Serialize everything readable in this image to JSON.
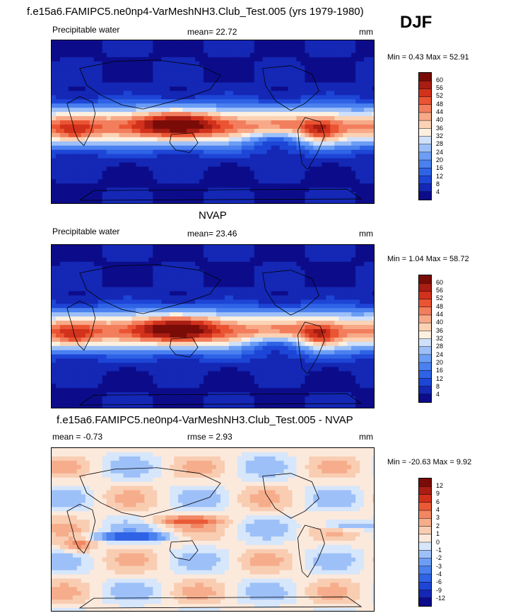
{
  "header": {
    "title": "f.e15a6.FAMIPC5.ne0np4-VarMeshNH3.Club_Test.005 (yrs 1979-1980)",
    "season": "DJF"
  },
  "panels": [
    {
      "left_label": "Precipitable water",
      "center_label": "mean=  22.72",
      "units": "mm",
      "minmax": "Min =   0.43 Max =  52.91",
      "levels": [
        "4",
        "8",
        "12",
        "16",
        "20",
        "24",
        "28",
        "32",
        "36",
        "40",
        "44",
        "48",
        "52",
        "56",
        "60"
      ],
      "colors": [
        "#0c0c8a",
        "#1427b5",
        "#1d45d6",
        "#2f63e6",
        "#4a80ef",
        "#6c9ef5",
        "#9dc0f8",
        "#cfe0fb",
        "#fdf0e0",
        "#fbd2b4",
        "#f7a988",
        "#f27e5d",
        "#ea5432",
        "#d2311c",
        "#a91d12",
        "#7a0c08"
      ],
      "map_style": "mean"
    },
    {
      "section_title": "NVAP",
      "left_label": "Precipitable water",
      "center_label": "mean=  23.46",
      "units": "mm",
      "minmax": "Min =   1.04 Max =  58.72",
      "levels": [
        "4",
        "8",
        "12",
        "16",
        "20",
        "24",
        "28",
        "32",
        "36",
        "40",
        "44",
        "48",
        "52",
        "56",
        "60"
      ],
      "colors": [
        "#0c0c8a",
        "#1427b5",
        "#1d45d6",
        "#2f63e6",
        "#4a80ef",
        "#6c9ef5",
        "#9dc0f8",
        "#cfe0fb",
        "#fdf0e0",
        "#fbd2b4",
        "#f7a988",
        "#f27e5d",
        "#ea5432",
        "#d2311c",
        "#a91d12",
        "#7a0c08"
      ],
      "map_style": "mean"
    },
    {
      "section_title": "f.e15a6.FAMIPC5.ne0np4-VarMeshNH3.Club_Test.005 - NVAP",
      "left_label": "mean =  -0.73",
      "center_label": "rmse =   2.93",
      "units": "mm",
      "minmax": "Min = -20.63 Max =   9.92",
      "levels": [
        "-12",
        "-9",
        "-6",
        "-4",
        "-3",
        "-2",
        "-1",
        "0",
        "1",
        "2",
        "3",
        "4",
        "6",
        "9",
        "12"
      ],
      "colors": [
        "#0c0c8a",
        "#1427b5",
        "#1d45d6",
        "#2f63e6",
        "#4a80ef",
        "#6c9ef5",
        "#9dc0f8",
        "#d6e6fb",
        "#fbe9dc",
        "#f9cdb2",
        "#f6ad8c",
        "#f28662",
        "#ea5a36",
        "#d2311c",
        "#a91d12",
        "#7a0c08"
      ],
      "map_style": "diff"
    }
  ]
}
